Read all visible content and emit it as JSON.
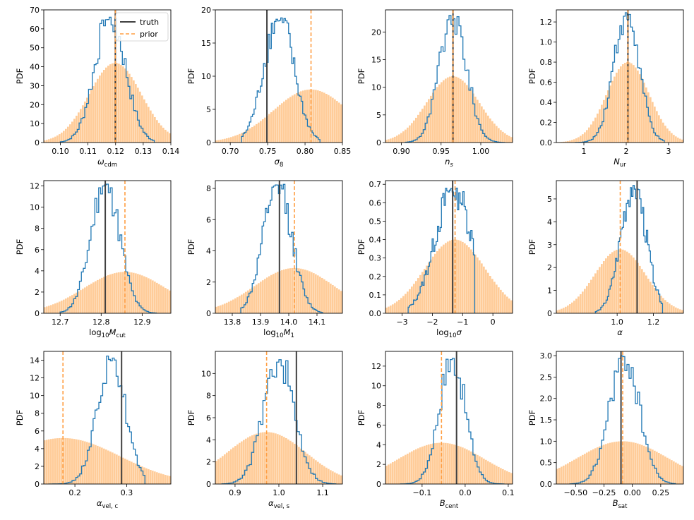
{
  "figure": {
    "legend": {
      "panel": 0,
      "placement": "top-right",
      "entries": [
        {
          "label": "truth",
          "color": "#404040",
          "style": "solid"
        },
        {
          "label": "prior",
          "color": "#ff9f44",
          "style": "dashed"
        }
      ]
    }
  },
  "colors": {
    "posterior": "#1f77b4",
    "prior_fill": "#ffcc99",
    "truth": "#404040",
    "prior_mean": "#ff9f44"
  },
  "chart_data": [
    {
      "type": "histogram",
      "ylabel": "PDF",
      "xlabel": "ω_cdm",
      "xlim": [
        0.094,
        0.14
      ],
      "ylim": [
        0,
        70
      ],
      "xticks": [
        "0.10",
        "0.11",
        "0.12",
        "0.13",
        "0.14"
      ],
      "yticks": [
        "0",
        "10",
        "20",
        "30",
        "40",
        "50",
        "60",
        "70"
      ],
      "truth": 0.1199,
      "prior_mean": 0.1199,
      "prior_peak": 42,
      "prior_sd": 0.0095,
      "posterior": {
        "center": 0.118,
        "sd": 0.0055,
        "peak": 67,
        "range": [
          0.1,
          0.134
        ]
      }
    },
    {
      "type": "histogram",
      "ylabel": "PDF",
      "xlabel": "σ_8",
      "xlim": [
        0.68,
        0.85
      ],
      "ylim": [
        0,
        20
      ],
      "xticks": [
        "0.70",
        "0.75",
        "0.80",
        "0.85"
      ],
      "yticks": [
        "0",
        "5",
        "10",
        "15",
        "20"
      ],
      "truth": 0.749,
      "prior_mean": 0.808,
      "prior_peak": 8,
      "prior_sd": 0.05,
      "posterior": {
        "center": 0.765,
        "sd": 0.02,
        "peak": 19,
        "range": [
          0.715,
          0.82
        ]
      }
    },
    {
      "type": "histogram",
      "ylabel": "PDF",
      "xlabel": "n_s",
      "xlim": [
        0.88,
        1.04
      ],
      "ylim": [
        0,
        24
      ],
      "xticks": [
        "0.90",
        "0.95",
        "1.00"
      ],
      "yticks": [
        "0",
        "5",
        "10",
        "15",
        "20"
      ],
      "truth": 0.965,
      "prior_mean": 0.965,
      "prior_peak": 12,
      "prior_sd": 0.033,
      "posterior": {
        "center": 0.965,
        "sd": 0.017,
        "peak": 23,
        "range": [
          0.905,
          1.03
        ]
      }
    },
    {
      "type": "histogram",
      "ylabel": "PDF",
      "xlabel": "N_ur",
      "xlim": [
        0.35,
        3.35
      ],
      "ylim": [
        0,
        1.32
      ],
      "xticks": [
        "1",
        "2",
        "3"
      ],
      "yticks": [
        "0.0",
        "0.2",
        "0.4",
        "0.6",
        "0.8",
        "1.0",
        "1.2"
      ],
      "truth": 2.04,
      "prior_mean": 2.04,
      "prior_peak": 0.8,
      "prior_sd": 0.5,
      "posterior": {
        "center": 2.0,
        "sd": 0.3,
        "peak": 1.3,
        "range": [
          0.8,
          2.9
        ]
      }
    },
    {
      "type": "histogram",
      "ylabel": "PDF",
      "xlabel": "log₁₀M_cut",
      "xlim": [
        12.66,
        12.97
      ],
      "ylim": [
        0,
        12.5
      ],
      "xticks": [
        "12.7",
        "12.8",
        "12.9"
      ],
      "yticks": [
        "0",
        "2",
        "4",
        "6",
        "8",
        "10",
        "12"
      ],
      "truth": 12.81,
      "prior_mean": 12.858,
      "prior_peak": 3.9,
      "prior_sd": 0.1,
      "posterior": {
        "center": 12.81,
        "sd": 0.035,
        "peak": 12.3,
        "range": [
          12.7,
          12.935
        ]
      }
    },
    {
      "type": "histogram",
      "ylabel": "PDF",
      "xlabel": "log₁₀M₁",
      "xlim": [
        13.74,
        14.19
      ],
      "ylim": [
        0,
        8.5
      ],
      "xticks": [
        "13.8",
        "13.9",
        "14.0",
        "14.1"
      ],
      "yticks": [
        "0",
        "2",
        "4",
        "6",
        "8"
      ],
      "truth": 13.967,
      "prior_mean": 14.02,
      "prior_peak": 2.9,
      "prior_sd": 0.14,
      "posterior": {
        "center": 13.96,
        "sd": 0.05,
        "peak": 8.3,
        "range": [
          13.83,
          14.12
        ]
      }
    },
    {
      "type": "histogram",
      "ylabel": "PDF",
      "xlabel": "log₁₀σ",
      "xlim": [
        -3.55,
        0.65
      ],
      "ylim": [
        0,
        0.72
      ],
      "xticks": [
        "−3",
        "−2",
        "−1",
        "0"
      ],
      "yticks": [
        "0.0",
        "0.1",
        "0.2",
        "0.3",
        "0.4",
        "0.5",
        "0.6",
        "0.7"
      ],
      "truth": -1.33,
      "prior_mean": -1.25,
      "prior_peak": 0.4,
      "prior_sd": 1.0,
      "posterior": {
        "center": -1.3,
        "sd": 0.6,
        "peak": 0.68,
        "range": [
          -2.8,
          -0.6
        ]
      }
    },
    {
      "type": "histogram",
      "ylabel": "PDF",
      "xlabel": "α",
      "xlim": [
        0.665,
        1.365
      ],
      "ylim": [
        0,
        5.8
      ],
      "xticks": [
        "1.0",
        "1.2"
      ],
      "yticks": [
        "0",
        "1",
        "2",
        "3",
        "4",
        "5"
      ],
      "truth": 1.11,
      "prior_mean": 1.017,
      "prior_peak": 2.8,
      "prior_sd": 0.14,
      "posterior": {
        "center": 1.09,
        "sd": 0.07,
        "peak": 5.6,
        "range": [
          0.88,
          1.25
        ]
      }
    },
    {
      "type": "histogram",
      "ylabel": "PDF",
      "xlabel": "α_vel,c",
      "xlim": [
        0.14,
        0.385
      ],
      "ylim": [
        0,
        15
      ],
      "xticks": [
        "0.2",
        "0.3"
      ],
      "yticks": [
        "0",
        "2",
        "4",
        "6",
        "8",
        "10",
        "12",
        "14"
      ],
      "truth": 0.29,
      "prior_mean": 0.177,
      "prior_peak": 5.2,
      "prior_sd": 0.11,
      "posterior": {
        "center": 0.27,
        "sd": 0.027,
        "peak": 14.5,
        "range": [
          0.15,
          0.335
        ]
      }
    },
    {
      "type": "histogram",
      "ylabel": "PDF",
      "xlabel": "α_vel,s",
      "xlim": [
        0.855,
        1.145
      ],
      "ylim": [
        0,
        12
      ],
      "xticks": [
        "0.9",
        "1.0",
        "1.1"
      ],
      "yticks": [
        "0",
        "2",
        "4",
        "6",
        "8",
        "10"
      ],
      "truth": 1.04,
      "prior_mean": 0.972,
      "prior_peak": 4.7,
      "prior_sd": 0.09,
      "posterior": {
        "center": 1.0,
        "sd": 0.035,
        "peak": 11.3,
        "range": [
          0.87,
          1.13
        ]
      }
    },
    {
      "type": "histogram",
      "ylabel": "PDF",
      "xlabel": "B_cent",
      "xlim": [
        -0.185,
        0.11
      ],
      "ylim": [
        0,
        13.5
      ],
      "xticks": [
        "−0.1",
        "0.0",
        "0.1"
      ],
      "yticks": [
        "0",
        "2",
        "4",
        "6",
        "8",
        "10",
        "12"
      ],
      "truth": -0.02,
      "prior_mean": -0.055,
      "prior_peak": 4.2,
      "prior_sd": 0.1,
      "posterior": {
        "center": -0.03,
        "sd": 0.03,
        "peak": 13,
        "range": [
          -0.15,
          0.09
        ]
      }
    },
    {
      "type": "histogram",
      "ylabel": "PDF",
      "xlabel": "B_sat",
      "xlim": [
        -0.67,
        0.45
      ],
      "ylim": [
        0,
        3.1
      ],
      "xticks": [
        "−0.50",
        "−0.25",
        "0.00",
        "0.25"
      ],
      "yticks": [
        "0.0",
        "0.5",
        "1.0",
        "1.5",
        "2.0",
        "2.5",
        "3.0"
      ],
      "truth": -0.1,
      "prior_mean": -0.085,
      "prior_peak": 1.0,
      "prior_sd": 0.4,
      "posterior": {
        "center": -0.07,
        "sd": 0.13,
        "peak": 3.0,
        "range": [
          -0.55,
          0.38
        ]
      }
    }
  ]
}
